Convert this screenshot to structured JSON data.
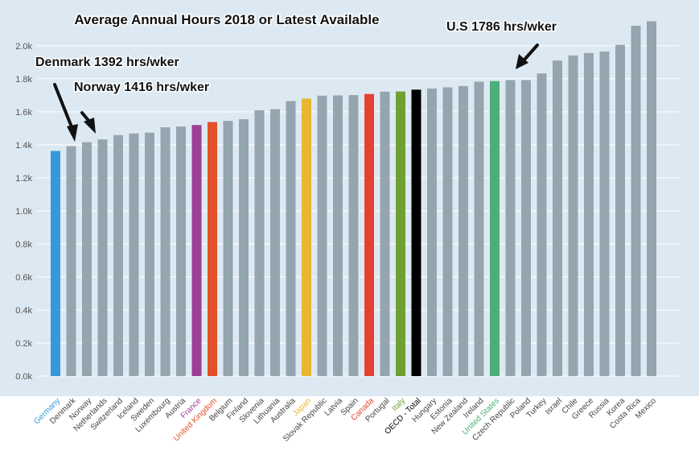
{
  "chart_data": {
    "type": "bar",
    "title": "Average Annual Hours 2018 or Latest Available",
    "xlabel": "",
    "ylabel": "",
    "ylim": [
      0,
      2150
    ],
    "yticks": [
      {
        "value": 0,
        "label": "0.0k"
      },
      {
        "value": 200,
        "label": "0.2k"
      },
      {
        "value": 400,
        "label": "0.4k"
      },
      {
        "value": 600,
        "label": "0.6k"
      },
      {
        "value": 800,
        "label": "0.8k"
      },
      {
        "value": 1000,
        "label": "1.0k"
      },
      {
        "value": 1200,
        "label": "1.2k"
      },
      {
        "value": 1400,
        "label": "1.4k"
      },
      {
        "value": 1600,
        "label": "1.6k"
      },
      {
        "value": 1800,
        "label": "1.8k"
      },
      {
        "value": 2000,
        "label": "2.0k"
      }
    ],
    "grid": "horizontal",
    "categories": [
      "Germany",
      "Denmark",
      "Norway",
      "Netherlands",
      "Switzerland",
      "Iceland",
      "Sweden",
      "Luxembourg",
      "Austria",
      "France",
      "United Kingdom",
      "Belgium",
      "Finland",
      "Slovenia",
      "Lithuania",
      "Australia",
      "Japan",
      "Slovak Republic",
      "Latvia",
      "Spain",
      "Canada",
      "Portugal",
      "Italy",
      "OECD - Total",
      "Hungary",
      "Estonia",
      "New Zealand",
      "Ireland",
      "United States",
      "Czech Republic",
      "Poland",
      "Turkey",
      "Israel",
      "Chile",
      "Greece",
      "Russia",
      "Korea",
      "Costa Rica",
      "Mexico"
    ],
    "values": [
      1363,
      1392,
      1416,
      1433,
      1459,
      1469,
      1474,
      1506,
      1511,
      1520,
      1538,
      1545,
      1555,
      1609,
      1616,
      1665,
      1680,
      1698,
      1699,
      1701,
      1708,
      1722,
      1723,
      1734,
      1741,
      1748,
      1756,
      1782,
      1786,
      1792,
      1792,
      1832,
      1910,
      1941,
      1956,
      1965,
      2005,
      2121,
      2148
    ],
    "colors": {
      "default": "#95a5af",
      "Germany": "#3498db",
      "France": "#9b3e96",
      "United Kingdom": "#e2512a",
      "Japan": "#e8b731",
      "Canada": "#e44231",
      "Italy": "#70a030",
      "OECD - Total": "#000000",
      "United States": "#4caf78",
      "background": "#dde9f2"
    },
    "annotations": [
      {
        "text": "Denmark 1392 hrs/wker",
        "target": "Denmark"
      },
      {
        "text": "Norway 1416 hrs/wker",
        "target": "Norway"
      },
      {
        "text": "U.S 1786 hrs/wker",
        "target": "United States"
      }
    ]
  }
}
